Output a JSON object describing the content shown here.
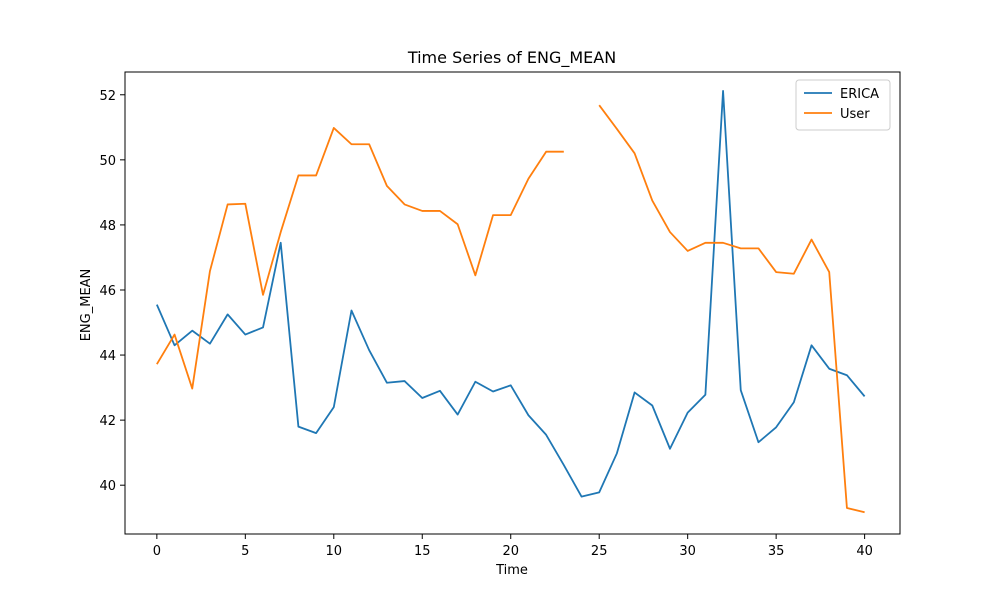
{
  "chart_data": {
    "type": "line",
    "title": "Time Series of ENG_MEAN",
    "xlabel": "Time",
    "ylabel": "ENG_MEAN",
    "xlim": [
      -1.8,
      42.0
    ],
    "ylim": [
      38.5,
      52.7
    ],
    "xticks": [
      0,
      5,
      10,
      15,
      20,
      25,
      30,
      35,
      40
    ],
    "yticks": [
      40,
      42,
      44,
      46,
      48,
      50,
      52
    ],
    "grid": false,
    "legend_position": "top-right",
    "series": [
      {
        "name": "ERICA",
        "color": "#1f77b4",
        "x": [
          0,
          1,
          2,
          3,
          4,
          5,
          6,
          7,
          8,
          9,
          10,
          11,
          12,
          13,
          14,
          15,
          16,
          17,
          18,
          19,
          20,
          21,
          22,
          23,
          24,
          25,
          26,
          27,
          28,
          29,
          30,
          31,
          32,
          33,
          34,
          35,
          36,
          37,
          38,
          39,
          40
        ],
        "values": [
          45.55,
          44.3,
          44.75,
          44.35,
          45.25,
          44.63,
          44.85,
          47.45,
          41.8,
          41.6,
          42.4,
          45.37,
          44.15,
          43.15,
          43.2,
          42.68,
          42.9,
          42.17,
          43.18,
          42.88,
          43.07,
          42.15,
          41.55,
          40.62,
          39.65,
          39.78,
          40.98,
          42.85,
          42.45,
          41.12,
          42.23,
          42.78,
          52.12,
          42.92,
          41.32,
          41.78,
          42.55,
          44.3,
          43.58,
          43.38,
          42.73
        ]
      },
      {
        "name": "User",
        "color": "#ff7f0e",
        "x": [
          0,
          1,
          2,
          3,
          4,
          5,
          6,
          7,
          8,
          9,
          10,
          11,
          12,
          13,
          14,
          15,
          16,
          17,
          18,
          19,
          20,
          21,
          22,
          23,
          24,
          25,
          26,
          27,
          28,
          29,
          30,
          31,
          32,
          33,
          34,
          35,
          36,
          37,
          38,
          39,
          40
        ],
        "values": [
          43.72,
          44.63,
          42.97,
          46.58,
          48.63,
          48.65,
          45.85,
          47.78,
          49.52,
          49.52,
          50.98,
          50.48,
          50.48,
          49.2,
          48.63,
          48.43,
          48.43,
          48.02,
          46.45,
          48.3,
          48.3,
          49.42,
          50.25,
          50.25,
          null,
          51.68,
          50.95,
          50.2,
          48.75,
          47.78,
          47.2,
          47.45,
          47.45,
          47.28,
          47.28,
          46.55,
          46.5,
          47.55,
          46.55,
          39.3,
          39.17
        ]
      }
    ]
  }
}
